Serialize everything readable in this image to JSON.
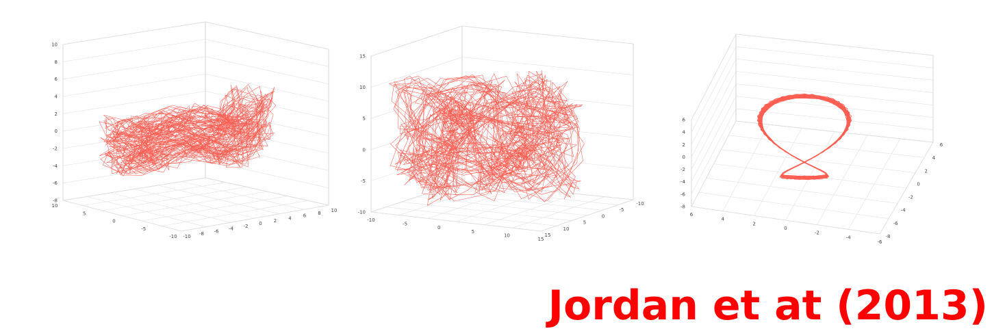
{
  "citation": "Jordan et at (2013)",
  "colors": {
    "trajectory": "#ff2a1a",
    "citation": "#ff0000"
  },
  "chart_data": [
    {
      "type": "line",
      "projection": "3d",
      "z_ticks": [
        "10",
        "8",
        "6",
        "4",
        "2",
        "0",
        "-2",
        "-4",
        "-6",
        "-8"
      ],
      "x_ticks": [
        "10",
        "5",
        "0",
        "-5",
        "-10"
      ],
      "y_ticks": [
        "-10",
        "-8",
        "-6",
        "-4",
        "-2",
        "0",
        "2",
        "4",
        "6",
        "8",
        "10"
      ],
      "zlim": [
        -8,
        10
      ],
      "xlim": [
        -10,
        10
      ],
      "ylim": [
        -10,
        10
      ],
      "grid": true
    },
    {
      "type": "line",
      "projection": "3d",
      "z_ticks": [
        "15",
        "10",
        "5",
        "0",
        "-5",
        "-10"
      ],
      "x_ticks": [
        "-10",
        "-5",
        "0",
        "5",
        "10",
        "15"
      ],
      "y_ticks": [
        "15",
        "10",
        "5",
        "0",
        "-5",
        "-10"
      ],
      "zlim": [
        -10,
        15
      ],
      "xlim": [
        -10,
        15
      ],
      "ylim": [
        -10,
        15
      ],
      "grid": true
    },
    {
      "type": "line",
      "projection": "3d",
      "z_ticks": [
        "6",
        "4",
        "2",
        "0",
        "-2",
        "-4",
        "-6",
        "-8"
      ],
      "x_ticks": [
        "6",
        "4",
        "2",
        "0",
        "-2",
        "-4",
        "-6"
      ],
      "y_ticks": [
        "-8",
        "-6",
        "-4",
        "-2",
        "0",
        "2",
        "4",
        "6"
      ],
      "zlim": [
        -8,
        6
      ],
      "xlim": [
        -6,
        6
      ],
      "ylim": [
        -8,
        6
      ],
      "grid": true
    }
  ]
}
